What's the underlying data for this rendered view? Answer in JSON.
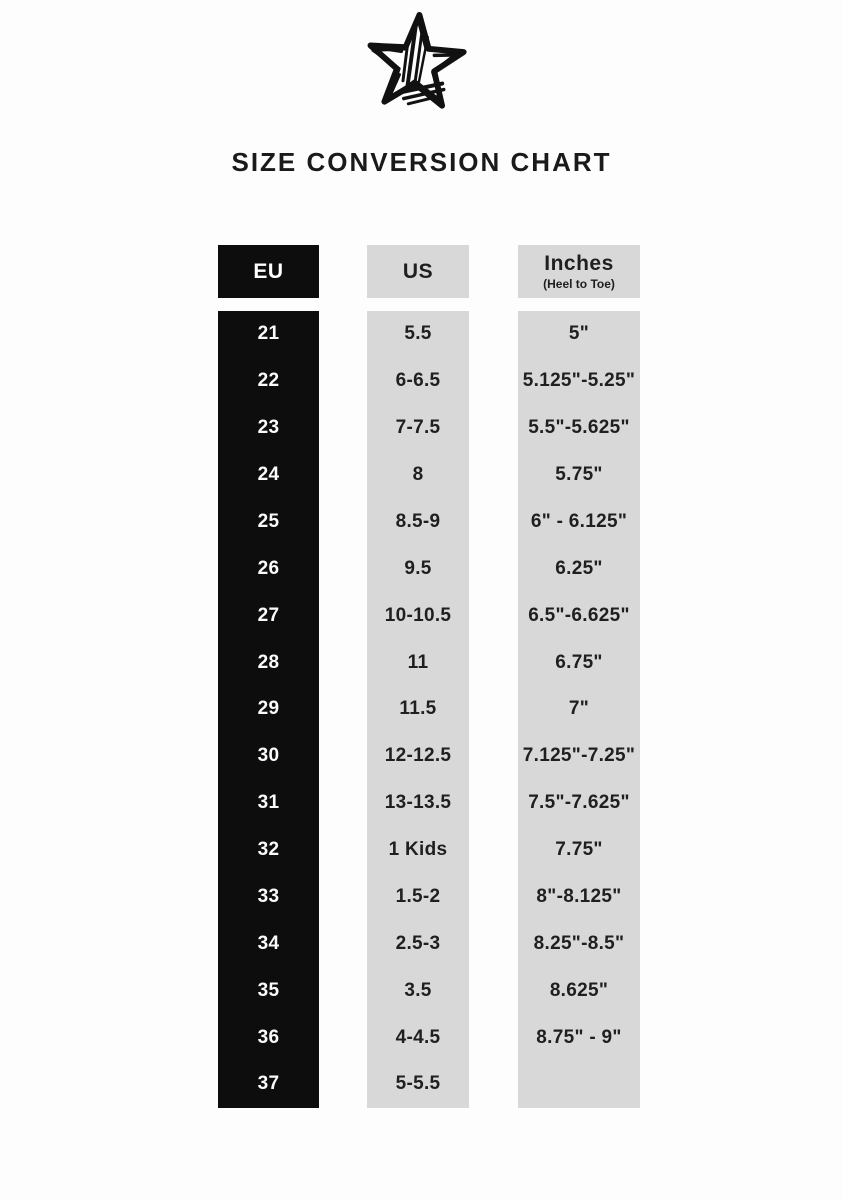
{
  "page": {
    "title": "SIZE CONVERSION CHART"
  },
  "logo": {
    "icon": "sketched-star"
  },
  "colors": {
    "black": "#0d0d0d",
    "gray": "#d8d8d8",
    "text-dark": "#1f1f1f",
    "bg": "#fdfdfd"
  },
  "table": {
    "headers": {
      "eu": "EU",
      "us": "US",
      "inches": "Inches",
      "inches_sub": "(Heel to Toe)"
    },
    "rows": [
      {
        "eu": "21",
        "us": "5.5",
        "inches": "5\""
      },
      {
        "eu": "22",
        "us": "6-6.5",
        "inches": "5.125\"-5.25\""
      },
      {
        "eu": "23",
        "us": "7-7.5",
        "inches": "5.5\"-5.625\""
      },
      {
        "eu": "24",
        "us": "8",
        "inches": "5.75\""
      },
      {
        "eu": "25",
        "us": "8.5-9",
        "inches": "6\" - 6.125\""
      },
      {
        "eu": "26",
        "us": "9.5",
        "inches": "6.25\""
      },
      {
        "eu": "27",
        "us": "10-10.5",
        "inches": "6.5\"-6.625\""
      },
      {
        "eu": "28",
        "us": "11",
        "inches": "6.75\""
      },
      {
        "eu": "29",
        "us": "11.5",
        "inches": "7\""
      },
      {
        "eu": "30",
        "us": "12-12.5",
        "inches": "7.125\"-7.25\""
      },
      {
        "eu": "31",
        "us": "13-13.5",
        "inches": "7.5\"-7.625\""
      },
      {
        "eu": "32",
        "us": "1 Kids",
        "inches": "7.75\""
      },
      {
        "eu": "33",
        "us": "1.5-2",
        "inches": "8\"-8.125\""
      },
      {
        "eu": "34",
        "us": "2.5-3",
        "inches": "8.25\"-8.5\""
      },
      {
        "eu": "35",
        "us": "3.5",
        "inches": "8.625\""
      },
      {
        "eu": "36",
        "us": "4-4.5",
        "inches": "8.75\" - 9\""
      },
      {
        "eu": "37",
        "us": "5-5.5",
        "inches": ""
      }
    ]
  },
  "chart_data": {
    "type": "table",
    "title": "SIZE CONVERSION CHART",
    "columns": [
      "EU",
      "US",
      "Inches (Heel to Toe)"
    ],
    "rows": [
      [
        "21",
        "5.5",
        "5\""
      ],
      [
        "22",
        "6-6.5",
        "5.125\"-5.25\""
      ],
      [
        "23",
        "7-7.5",
        "5.5\"-5.625\""
      ],
      [
        "24",
        "8",
        "5.75\""
      ],
      [
        "25",
        "8.5-9",
        "6\" - 6.125\""
      ],
      [
        "26",
        "9.5",
        "6.25\""
      ],
      [
        "27",
        "10-10.5",
        "6.5\"-6.625\""
      ],
      [
        "28",
        "11",
        "6.75\""
      ],
      [
        "29",
        "11.5",
        "7\""
      ],
      [
        "30",
        "12-12.5",
        "7.125\"-7.25\""
      ],
      [
        "31",
        "13-13.5",
        "7.5\"-7.625\""
      ],
      [
        "32",
        "1 Kids",
        "7.75\""
      ],
      [
        "33",
        "1.5-2",
        "8\"-8.125\""
      ],
      [
        "34",
        "2.5-3",
        "8.25\"-8.5\""
      ],
      [
        "35",
        "3.5",
        "8.625\""
      ],
      [
        "36",
        "4-4.5",
        "8.75\" - 9\""
      ],
      [
        "37",
        "5-5.5",
        ""
      ]
    ]
  }
}
